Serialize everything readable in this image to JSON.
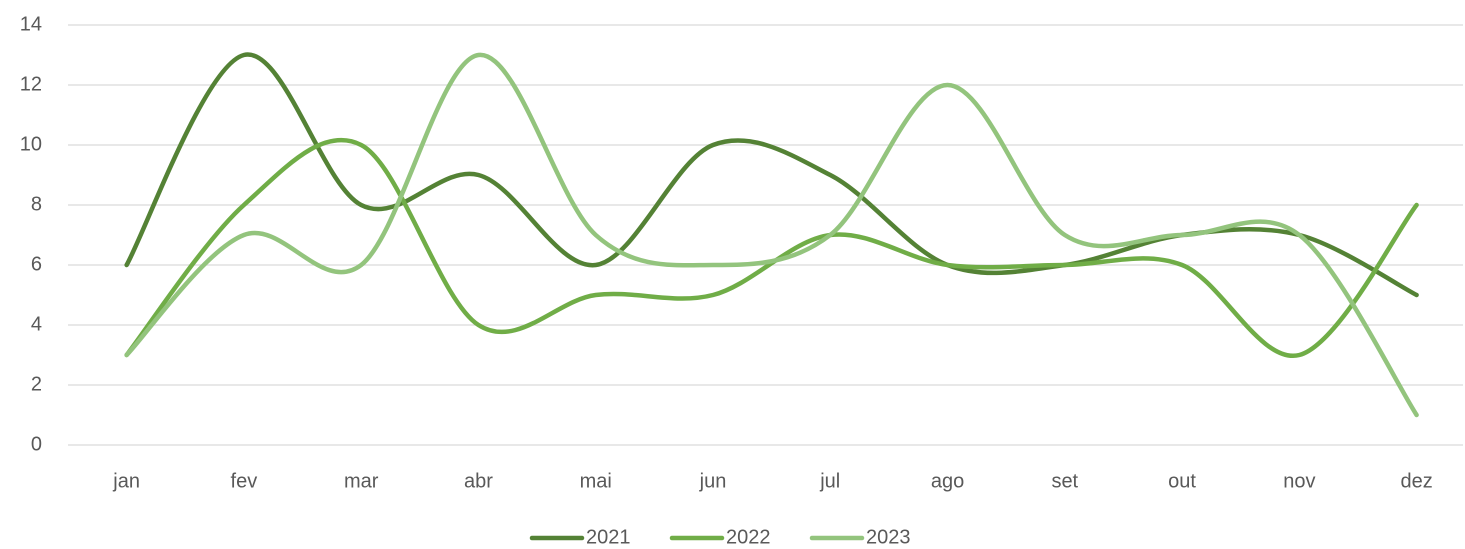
{
  "chart_data": {
    "type": "line",
    "categories": [
      "jan",
      "fev",
      "mar",
      "abr",
      "mai",
      "jun",
      "jul",
      "ago",
      "set",
      "out",
      "nov",
      "dez"
    ],
    "series": [
      {
        "name": "2021",
        "color": "#548235",
        "values": [
          6,
          13,
          8,
          9,
          6,
          10,
          9,
          6,
          6,
          7,
          7,
          5
        ]
      },
      {
        "name": "2022",
        "color": "#70ad47",
        "values": [
          3,
          8,
          10,
          4,
          5,
          5,
          7,
          6,
          6,
          6,
          3,
          8
        ]
      },
      {
        "name": "2023",
        "color": "#93c47d",
        "values": [
          3,
          7,
          6,
          13,
          7,
          6,
          7,
          12,
          7,
          7,
          7,
          1
        ]
      }
    ],
    "ylim": [
      0,
      14
    ],
    "yticks": [
      0,
      2,
      4,
      6,
      8,
      10,
      12,
      14
    ],
    "grid": true,
    "smooth": true,
    "legend": "bottom"
  }
}
